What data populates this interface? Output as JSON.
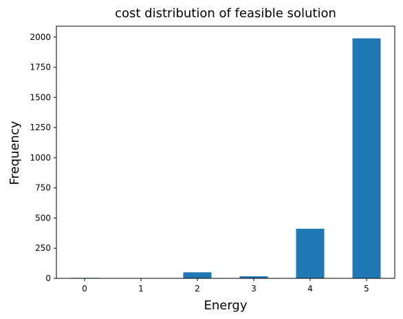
{
  "chart_data": {
    "type": "bar",
    "title": "cost distribution of feasible solution",
    "xlabel": "Energy",
    "ylabel": "Frequency",
    "categories": [
      "0",
      "1",
      "2",
      "3",
      "4",
      "5"
    ],
    "values": [
      4,
      1,
      50,
      17,
      411,
      1989
    ],
    "ylim": [
      0,
      2090
    ],
    "yticks": [
      0,
      250,
      500,
      750,
      1000,
      1250,
      1500,
      1750,
      2000
    ],
    "bar_color": "#1f77b4",
    "grid": false,
    "legend": "none"
  }
}
